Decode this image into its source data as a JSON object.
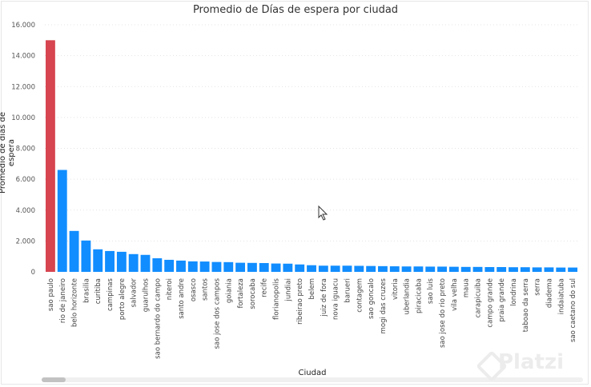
{
  "chart_data": {
    "type": "bar",
    "title": "Promedio de Días de espera por ciudad",
    "xlabel": "Ciudad",
    "ylabel": "Promedio de días de espera",
    "ylim": [
      0,
      16000
    ],
    "yticks": [
      "0",
      "2.000",
      "4.000",
      "6.000",
      "8.000",
      "10.000",
      "12.000",
      "14.000",
      "16.000"
    ],
    "ytick_values": [
      0,
      2000,
      4000,
      6000,
      8000,
      10000,
      12000,
      14000,
      16000
    ],
    "grid": true,
    "categories": [
      "sao paulo",
      "rio de janeiro",
      "belo horizonte",
      "brasilia",
      "curitiba",
      "campinas",
      "porto alegre",
      "salvador",
      "guarulhos",
      "sao bernardo do campo",
      "niteroi",
      "santo andre",
      "osasco",
      "santos",
      "sao jose dos campos",
      "goiania",
      "fortaleza",
      "sorocaba",
      "recife",
      "florianopolis",
      "jundiai",
      "ribeirao preto",
      "belem",
      "juiz de fora",
      "nova iguacu",
      "barueri",
      "contagem",
      "sao goncalo",
      "mogi das cruzes",
      "vitoria",
      "uberlandia",
      "piracicaba",
      "sao luis",
      "sao jose do rio preto",
      "vila velha",
      "maua",
      "carapicuiba",
      "campo grande",
      "praia grande",
      "londrina",
      "taboao da serra",
      "serra",
      "diadema",
      "indaiatuba",
      "sao caetano do sul"
    ],
    "values": [
      15000,
      6600,
      2650,
      2030,
      1460,
      1350,
      1300,
      1150,
      1100,
      880,
      780,
      730,
      680,
      670,
      640,
      630,
      590,
      580,
      570,
      540,
      530,
      480,
      430,
      400,
      400,
      400,
      390,
      380,
      370,
      360,
      350,
      350,
      340,
      340,
      330,
      320,
      320,
      310,
      310,
      300,
      300,
      290,
      290,
      280,
      280
    ],
    "highlight_index": 0,
    "colors": {
      "bar": "#118DFF",
      "highlight": "#D64550"
    }
  },
  "watermark": "Platzi"
}
